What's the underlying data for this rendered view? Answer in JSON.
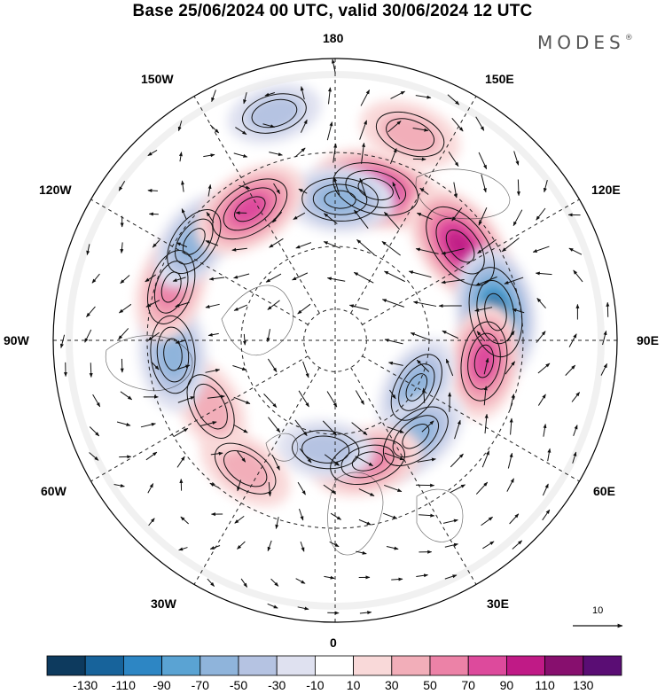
{
  "title": "Base 25/06/2024 00 UTC, valid 30/06/2024 12 UTC",
  "brand": {
    "name": "MODES",
    "mark": "®"
  },
  "longitude_labels": {
    "top": "180",
    "top_left": "150W",
    "upper_left": "120W",
    "left": "90W",
    "lower_left": "60W",
    "bottom_left": "30W",
    "bottom": "0",
    "bottom_right": "30E",
    "lower_right": "60E",
    "right": "90E",
    "upper_right": "120E",
    "top_right": "150E"
  },
  "reference_vector": {
    "value": "10"
  },
  "colorbar": {
    "labels": [
      "-130",
      "-110",
      "-90",
      "-70",
      "-50",
      "-30",
      "-10",
      "10",
      "30",
      "50",
      "70",
      "90",
      "110",
      "130"
    ],
    "colors": [
      "#0d3a5e",
      "#17639b",
      "#2d86c4",
      "#5aa3d3",
      "#8fb4db",
      "#b5c3e2",
      "#dfe1f0",
      "#ffffff",
      "#f9d9d9",
      "#f2aeb9",
      "#ec82a7",
      "#dd4a9c",
      "#c01a86",
      "#870f6e",
      "#5a0d74"
    ]
  },
  "anomalies": [
    {
      "kind": "pos",
      "lon": 165,
      "lat": 40,
      "amp": 0.9
    },
    {
      "kind": "neg",
      "lon": 178,
      "lat": 45,
      "amp": 0.6
    },
    {
      "kind": "pos",
      "lon": 127,
      "lat": 40,
      "amp": 1.0
    },
    {
      "kind": "neg",
      "lon": 100,
      "lat": 38,
      "amp": 1.0
    },
    {
      "kind": "pos",
      "lon": 82,
      "lat": 42,
      "amp": 0.7
    },
    {
      "kind": "neg",
      "lon": 60,
      "lat": 60,
      "amp": 0.5
    },
    {
      "kind": "neg",
      "lon": 40,
      "lat": 50,
      "amp": 0.6
    },
    {
      "kind": "pos",
      "lon": 15,
      "lat": 50,
      "amp": 0.6
    },
    {
      "kind": "neg",
      "lon": -5,
      "lat": 55,
      "amp": 0.35
    },
    {
      "kind": "pos",
      "lon": -35,
      "lat": 40,
      "amp": 0.4
    },
    {
      "kind": "pos",
      "lon": -62,
      "lat": 45,
      "amp": 0.4
    },
    {
      "kind": "neg",
      "lon": -85,
      "lat": 38,
      "amp": 0.65
    },
    {
      "kind": "pos",
      "lon": -108,
      "lat": 35,
      "amp": 0.6
    },
    {
      "kind": "neg",
      "lon": -125,
      "lat": 35,
      "amp": 0.5
    },
    {
      "kind": "pos",
      "lon": -147,
      "lat": 40,
      "amp": 0.8
    },
    {
      "kind": "pos",
      "lon": 160,
      "lat": 20,
      "amp": 0.45
    },
    {
      "kind": "neg",
      "lon": -165,
      "lat": 15,
      "amp": 0.3
    }
  ]
}
